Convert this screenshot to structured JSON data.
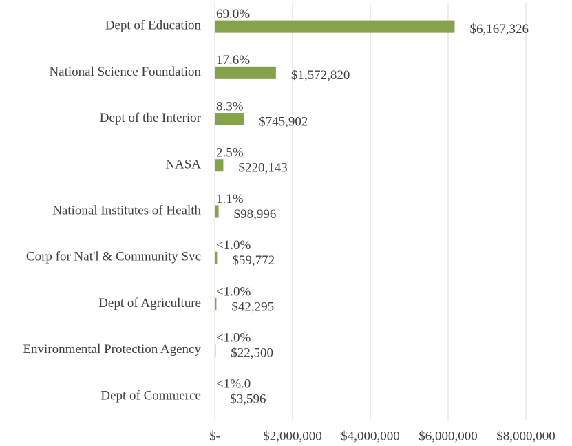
{
  "chart_data": {
    "type": "bar",
    "orientation": "horizontal",
    "categories": [
      "Dept of Education",
      "National Science Foundation",
      "Dept of the Interior",
      "NASA",
      "National Institutes of Health",
      "Corp for Nat'l & Community Svc",
      "Dept of Agriculture",
      "Environmental Protection Agency",
      "Dept of Commerce"
    ],
    "values": [
      6167326,
      1572820,
      745902,
      220143,
      98996,
      59772,
      42295,
      22500,
      3596
    ],
    "value_labels": [
      "$6,167,326",
      "$1,572,820",
      "$745,902",
      "$220,143",
      "$98,996",
      "$59,772",
      "$42,295",
      "$22,500",
      "$3,596"
    ],
    "percent_labels": [
      "69.0%",
      "17.6%",
      "8.3%",
      "2.5%",
      "1.1%",
      "<1.0%",
      "<1.0%",
      "<1.0%",
      "<1%.0"
    ],
    "color": "#84a34a",
    "xlim": [
      0,
      8000000
    ],
    "xticks": [
      {
        "value": 0,
        "label": "$-"
      },
      {
        "value": 2000000,
        "label": "$2,000,000"
      },
      {
        "value": 4000000,
        "label": "$4,000,000"
      },
      {
        "value": 6000000,
        "label": "$6,000,000"
      },
      {
        "value": 8000000,
        "label": "$8,000,000"
      }
    ],
    "grid": true
  }
}
